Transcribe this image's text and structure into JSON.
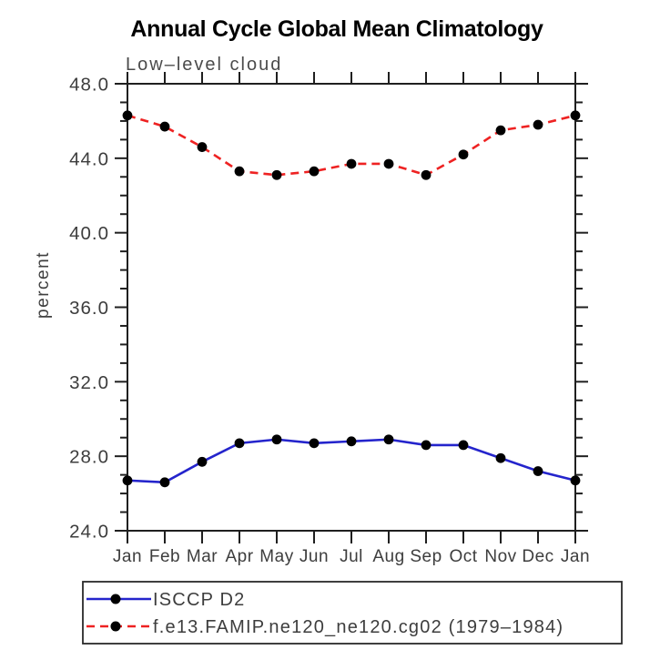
{
  "page": {
    "background": "#ffffff",
    "frame_color": "#1f1f1f"
  },
  "chart_data": {
    "type": "line",
    "title": "Annual Cycle Global Mean Climatology",
    "subtitle": "Low–level cloud",
    "ylabel": "percent",
    "xlabel": "",
    "categories": [
      "Jan",
      "Feb",
      "Mar",
      "Apr",
      "May",
      "Jun",
      "Jul",
      "Aug",
      "Sep",
      "Oct",
      "Nov",
      "Dec",
      "Jan"
    ],
    "ylim": [
      24.0,
      48.0
    ],
    "y_major_step": 4,
    "y_minor_step": 1,
    "y_tick_labels": [
      "24.0",
      "28.0",
      "32.0",
      "36.0",
      "40.0",
      "44.0",
      "48.0"
    ],
    "grid": false,
    "legend_position": "bottom-left",
    "marker_color": "#000000",
    "series": [
      {
        "name": "ISCCP D2",
        "color": "#2424cc",
        "line_style": "solid",
        "marker": "circle",
        "values": [
          26.7,
          26.6,
          27.7,
          28.7,
          28.9,
          28.7,
          28.8,
          28.9,
          28.6,
          28.6,
          27.9,
          27.2,
          26.7
        ]
      },
      {
        "name": "f.e13.FAMIP.ne120_ne120.cg02 (1979–1984)",
        "color": "#ee2222",
        "line_style": "dashed",
        "marker": "circle",
        "values": [
          46.3,
          45.7,
          44.6,
          43.3,
          43.1,
          43.3,
          43.7,
          43.7,
          43.1,
          44.2,
          45.5,
          45.8,
          46.3
        ]
      }
    ]
  }
}
